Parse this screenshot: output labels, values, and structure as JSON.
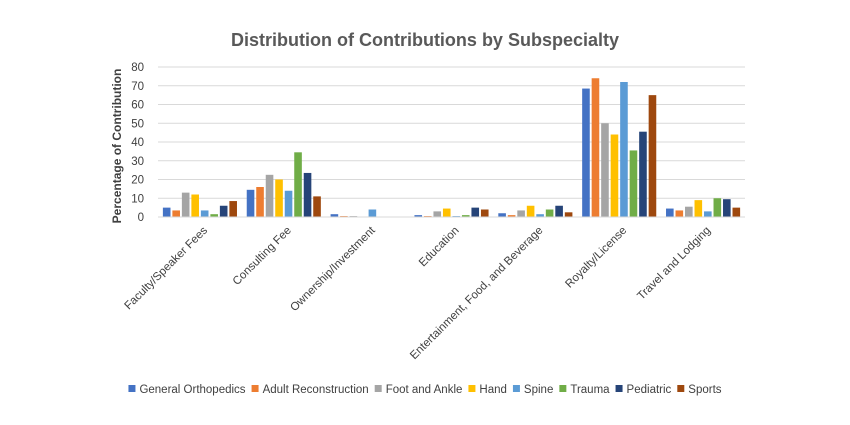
{
  "chart_data": {
    "type": "bar",
    "title": "Distribution of Contributions by Subspecialty",
    "xlabel": "",
    "ylabel": "Percentage of Contribution",
    "ylim": [
      0,
      80
    ],
    "yticks": [
      0,
      10,
      20,
      30,
      40,
      50,
      60,
      70,
      80
    ],
    "grid": true,
    "legend_position": "bottom",
    "categories": [
      "Faculty/Speaker Fees",
      "Consulting Fee",
      "Ownership/Investment",
      "Education",
      "Entertainment, Food, and Beverage",
      "Royalty/License",
      "Travel and Lodging"
    ],
    "series": [
      {
        "name": "General Orthopedics",
        "color": "#4472c4",
        "values": [
          5,
          14.5,
          1.5,
          1,
          2,
          68.5,
          4.5
        ]
      },
      {
        "name": "Adult Reconstruction",
        "color": "#ed7d31",
        "values": [
          3.5,
          16,
          0.5,
          0.5,
          1,
          74,
          3.5
        ]
      },
      {
        "name": "Foot and Ankle",
        "color": "#a5a5a5",
        "values": [
          13,
          22.5,
          0.5,
          3,
          3.5,
          50,
          5.5
        ]
      },
      {
        "name": "Hand",
        "color": "#ffc000",
        "values": [
          12,
          20,
          0,
          4.5,
          6,
          44,
          9
        ]
      },
      {
        "name": "Spine",
        "color": "#5b9bd5",
        "values": [
          3.5,
          14,
          4,
          0.5,
          1.5,
          72,
          3
        ]
      },
      {
        "name": "Trauma",
        "color": "#70ad47",
        "values": [
          1.5,
          34.5,
          0,
          1,
          4,
          35.5,
          10
        ]
      },
      {
        "name": "Pediatric",
        "color": "#264478",
        "values": [
          6,
          23.5,
          0,
          5,
          6,
          45.5,
          9.5
        ]
      },
      {
        "name": "Sports",
        "color": "#9e480e",
        "values": [
          8.5,
          11,
          0,
          4,
          2.5,
          65,
          5
        ]
      }
    ]
  }
}
